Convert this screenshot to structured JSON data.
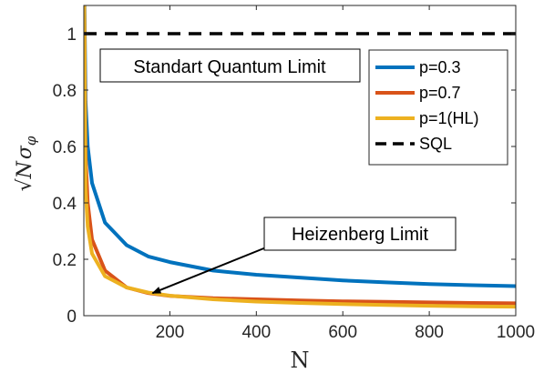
{
  "chart_data": {
    "type": "line",
    "title": "",
    "xlabel": "N",
    "ylabel": "√N σ_φ",
    "xlim": [
      1,
      1000
    ],
    "ylim": [
      0,
      1.1
    ],
    "xticks": [
      200,
      400,
      600,
      800,
      1000
    ],
    "yticks": [
      0,
      0.2,
      0.4,
      0.6,
      0.8,
      1
    ],
    "xtick_labels": [
      "200",
      "400",
      "600",
      "800",
      "1000"
    ],
    "ytick_labels": [
      "0",
      "0.2",
      "0.4",
      "0.6",
      "0.8",
      "1"
    ],
    "grid": false,
    "legend_position": "top-right",
    "series": [
      {
        "name": "p=0.3",
        "color": "#0072BD",
        "style": "solid",
        "x": [
          1,
          5,
          10,
          20,
          50,
          100,
          150,
          200,
          300,
          400,
          500,
          600,
          700,
          800,
          900,
          1000
        ],
        "y": [
          1.3,
          0.76,
          0.6,
          0.47,
          0.33,
          0.25,
          0.21,
          0.19,
          0.16,
          0.145,
          0.135,
          0.125,
          0.118,
          0.112,
          0.108,
          0.105
        ]
      },
      {
        "name": "p=0.7",
        "color": "#D95319",
        "style": "solid",
        "x": [
          1,
          5,
          10,
          20,
          50,
          100,
          150,
          200,
          300,
          400,
          500,
          600,
          700,
          800,
          900,
          1000
        ],
        "y": [
          1.3,
          0.57,
          0.4,
          0.27,
          0.16,
          0.1,
          0.08,
          0.07,
          0.062,
          0.058,
          0.054,
          0.051,
          0.049,
          0.047,
          0.045,
          0.044
        ]
      },
      {
        "name": "p=1(HL)",
        "color": "#EDB120",
        "style": "solid",
        "x": [
          1,
          5,
          10,
          20,
          50,
          100,
          150,
          200,
          300,
          400,
          500,
          600,
          700,
          800,
          900,
          1000
        ],
        "y": [
          1.3,
          0.45,
          0.316,
          0.22,
          0.14,
          0.1,
          0.082,
          0.071,
          0.058,
          0.05,
          0.045,
          0.041,
          0.038,
          0.035,
          0.033,
          0.032
        ]
      },
      {
        "name": "SQL",
        "color": "#000000",
        "style": "dashed",
        "x": [
          1,
          1000
        ],
        "y": [
          1,
          1
        ]
      }
    ],
    "annotations": [
      {
        "text": "Standart Quantum Limit"
      },
      {
        "text": "Heizenberg Limit",
        "arrow_to": [
          160,
          0.08
        ]
      }
    ]
  }
}
